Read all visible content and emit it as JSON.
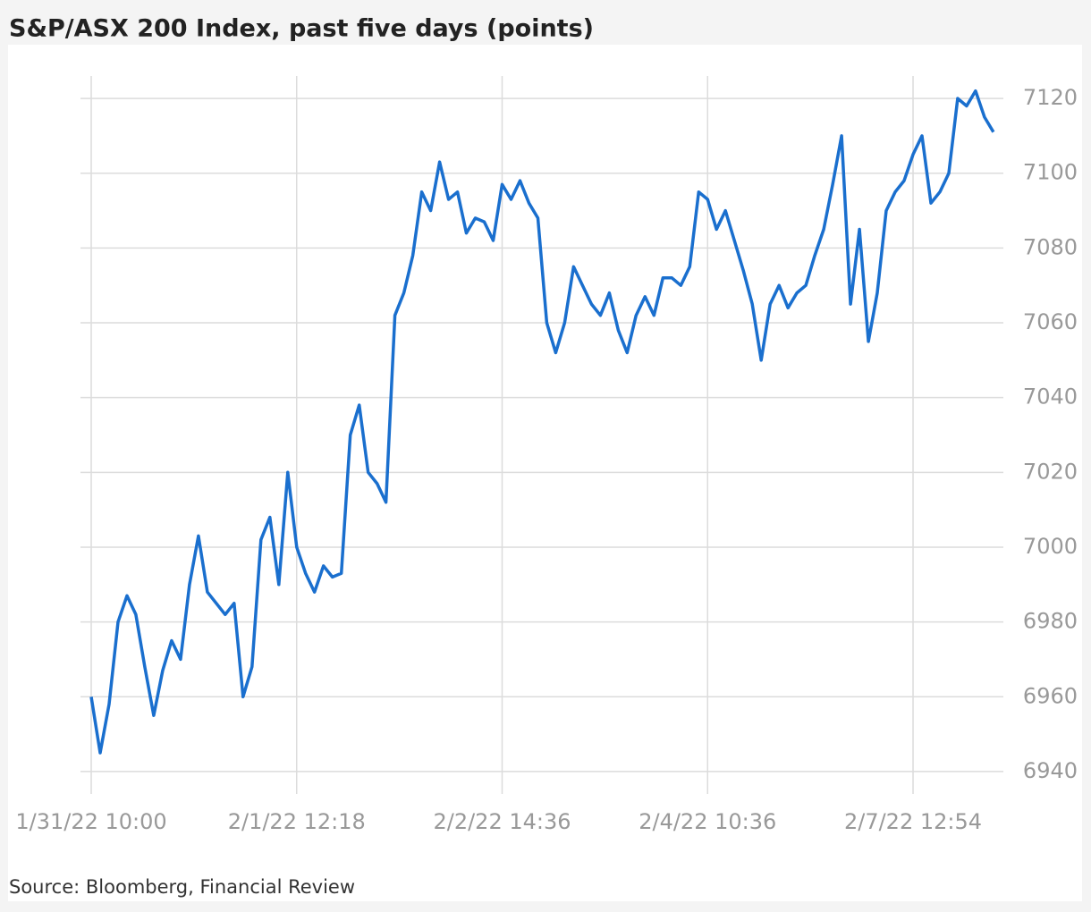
{
  "chart_data": {
    "type": "line",
    "title": "S&P/ASX 200 Index, past five days (points)",
    "source": "Source: Bloomberg, Financial Review",
    "categories": [
      "1/31/22 10:00",
      null,
      null,
      null,
      null,
      null,
      null,
      null,
      null,
      null,
      null,
      null,
      null,
      null,
      null,
      null,
      null,
      null,
      null,
      null,
      null,
      null,
      null,
      "2/1/22 12:18",
      null,
      null,
      null,
      null,
      null,
      null,
      null,
      null,
      null,
      null,
      null,
      null,
      null,
      null,
      null,
      null,
      null,
      null,
      null,
      null,
      null,
      null,
      "2/2/22 14:36",
      null,
      null,
      null,
      null,
      null,
      null,
      null,
      null,
      null,
      null,
      null,
      null,
      null,
      null,
      null,
      null,
      null,
      null,
      null,
      null,
      null,
      null,
      "2/4/22 10:36",
      null,
      null,
      null,
      null,
      null,
      null,
      null,
      null,
      null,
      null,
      null,
      null,
      null,
      null,
      null,
      null,
      null,
      null,
      null,
      null,
      null,
      null,
      "2/7/22 12:54",
      null,
      null,
      null,
      null,
      null,
      null,
      null,
      null,
      null
    ],
    "series": [
      {
        "name": "S&P/ASX 200",
        "color": "#1a6fce",
        "values": [
          6960,
          6945,
          6958,
          6980,
          6987,
          6982,
          6968,
          6955,
          6967,
          6975,
          6970,
          6990,
          7003,
          6988,
          6985,
          6982,
          6985,
          6960,
          6968,
          7002,
          7008,
          6990,
          7020,
          7000,
          6993,
          6988,
          6995,
          6992,
          6993,
          7030,
          7038,
          7020,
          7017,
          7012,
          7062,
          7068,
          7078,
          7095,
          7090,
          7103,
          7093,
          7095,
          7084,
          7088,
          7087,
          7082,
          7097,
          7093,
          7098,
          7092,
          7088,
          7060,
          7052,
          7060,
          7075,
          7070,
          7065,
          7062,
          7068,
          7058,
          7052,
          7062,
          7067,
          7062,
          7072,
          7072,
          7070,
          7075,
          7095,
          7093,
          7085,
          7090,
          7082,
          7074,
          7065,
          7050,
          7065,
          7070,
          7064,
          7068,
          7070,
          7078,
          7085,
          7097,
          7110,
          7065,
          7085,
          7055,
          7068,
          7090,
          7095,
          7098,
          7105,
          7110,
          7092,
          7095,
          7100,
          7120,
          7118,
          7122,
          7115,
          7111
        ]
      }
    ],
    "ylim": [
      6934,
      7126
    ],
    "yticks": [
      6940,
      6960,
      6980,
      7000,
      7020,
      7040,
      7060,
      7080,
      7100,
      7120
    ],
    "grid": true
  }
}
